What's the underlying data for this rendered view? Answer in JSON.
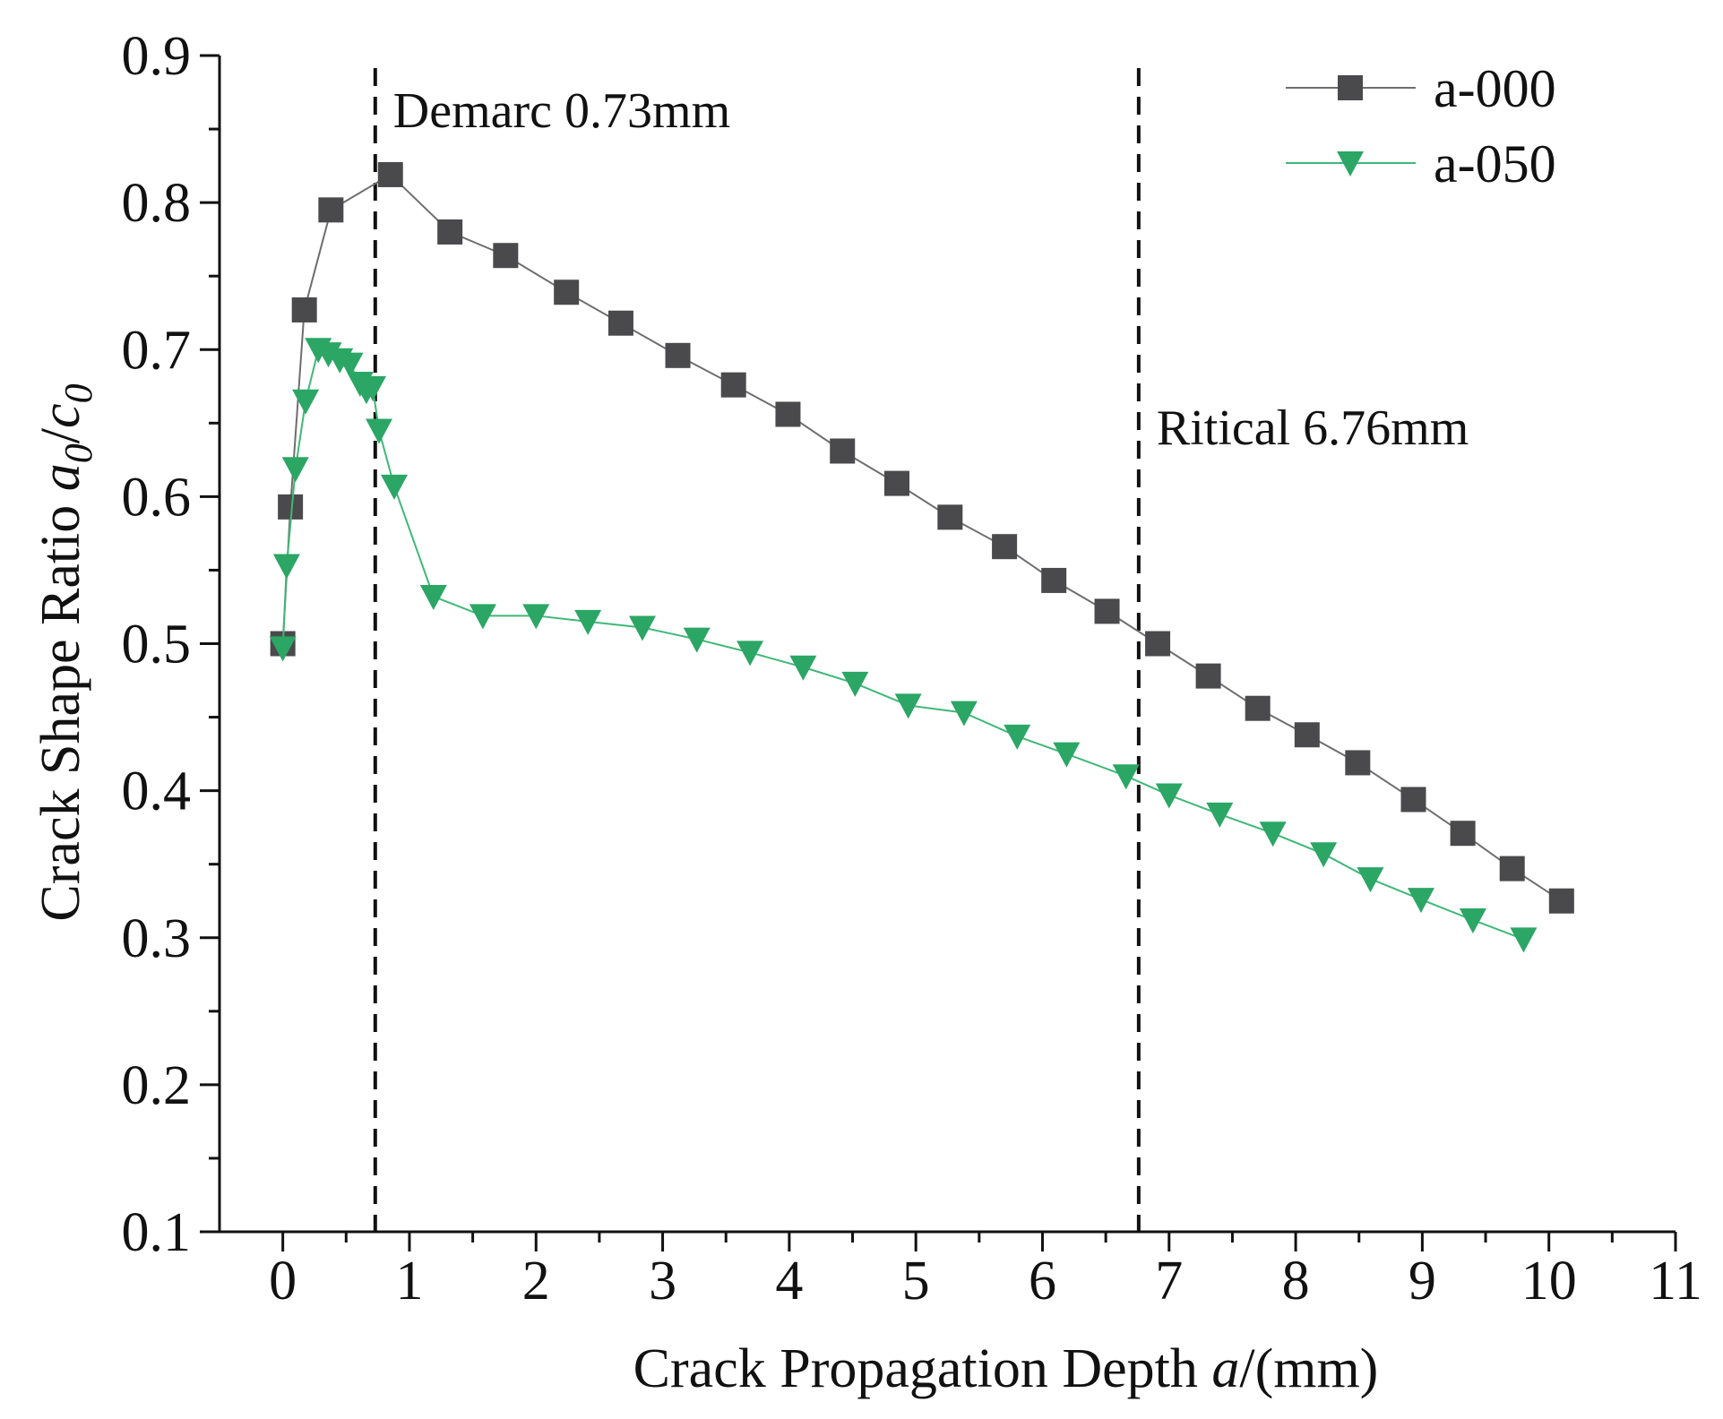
{
  "chart_data": {
    "type": "line",
    "title": "",
    "xlabel": "Crack Propagation Depth a/(mm)",
    "xlabel_parts": {
      "pre": "Crack Propagation Depth ",
      "var": "a",
      "post": "/(mm)"
    },
    "ylabel": "Crack Shape Ratio a0/c0",
    "ylabel_parts": {
      "pre": "Crack Shape Ratio ",
      "var1": "a",
      "sub1": "0",
      "slash": "/",
      "var2": "c",
      "sub2": "0"
    },
    "xlim": [
      -0.5,
      11
    ],
    "ylim": [
      0.1,
      0.9
    ],
    "xticks": [
      0,
      1,
      2,
      3,
      4,
      5,
      6,
      7,
      8,
      9,
      10,
      11
    ],
    "xtick_labels": [
      "0",
      "1",
      "2",
      "3",
      "4",
      "5",
      "6",
      "7",
      "8",
      "9",
      "10",
      "11"
    ],
    "yticks": [
      0.1,
      0.2,
      0.3,
      0.4,
      0.5,
      0.6,
      0.7,
      0.8,
      0.9
    ],
    "ytick_labels": [
      "0.1",
      "0.2",
      "0.3",
      "0.4",
      "0.5",
      "0.6",
      "0.7",
      "0.8",
      "0.9"
    ],
    "grid": false,
    "legend_position": "top-right",
    "series": [
      {
        "name": "a-000",
        "color": "#4a4a4c",
        "line_color": "#6e6e6e",
        "marker": "square",
        "x": [
          0,
          0.06,
          0.17,
          0.38,
          0.85,
          1.32,
          1.76,
          2.24,
          2.67,
          3.12,
          3.56,
          3.99,
          4.42,
          4.85,
          5.27,
          5.7,
          6.09,
          6.51,
          6.91,
          7.31,
          7.7,
          8.09,
          8.49,
          8.93,
          9.32,
          9.71,
          10.1
        ],
        "y": [
          0.5,
          0.593,
          0.727,
          0.795,
          0.819,
          0.78,
          0.764,
          0.739,
          0.718,
          0.696,
          0.676,
          0.656,
          0.631,
          0.609,
          0.586,
          0.566,
          0.543,
          0.522,
          0.5,
          0.478,
          0.456,
          0.438,
          0.419,
          0.394,
          0.371,
          0.347,
          0.325
        ]
      },
      {
        "name": "a-050",
        "color": "#2ba665",
        "line_color": "#3fb877",
        "marker": "triangle-down",
        "x": [
          0,
          0.03,
          0.1,
          0.18,
          0.28,
          0.36,
          0.45,
          0.53,
          0.61,
          0.66,
          0.71,
          0.76,
          0.88,
          1.19,
          1.58,
          2.0,
          2.41,
          2.84,
          3.27,
          3.69,
          4.11,
          4.52,
          4.94,
          5.38,
          5.8,
          6.19,
          6.66,
          7.0,
          7.4,
          7.82,
          8.22,
          8.59,
          8.99,
          9.4,
          9.8
        ],
        "y": [
          0.497,
          0.553,
          0.619,
          0.665,
          0.7,
          0.697,
          0.693,
          0.69,
          0.677,
          0.672,
          0.674,
          0.645,
          0.607,
          0.532,
          0.519,
          0.519,
          0.515,
          0.511,
          0.503,
          0.494,
          0.484,
          0.473,
          0.458,
          0.453,
          0.437,
          0.425,
          0.41,
          0.397,
          0.384,
          0.371,
          0.357,
          0.34,
          0.326,
          0.312,
          0.299
        ]
      }
    ],
    "reference_lines": [
      {
        "x": 0.73,
        "label": "Demarc 0.73mm",
        "label_side": "right-top"
      },
      {
        "x": 6.76,
        "label": "Ritical 6.76mm",
        "label_side": "right-middle"
      }
    ]
  }
}
